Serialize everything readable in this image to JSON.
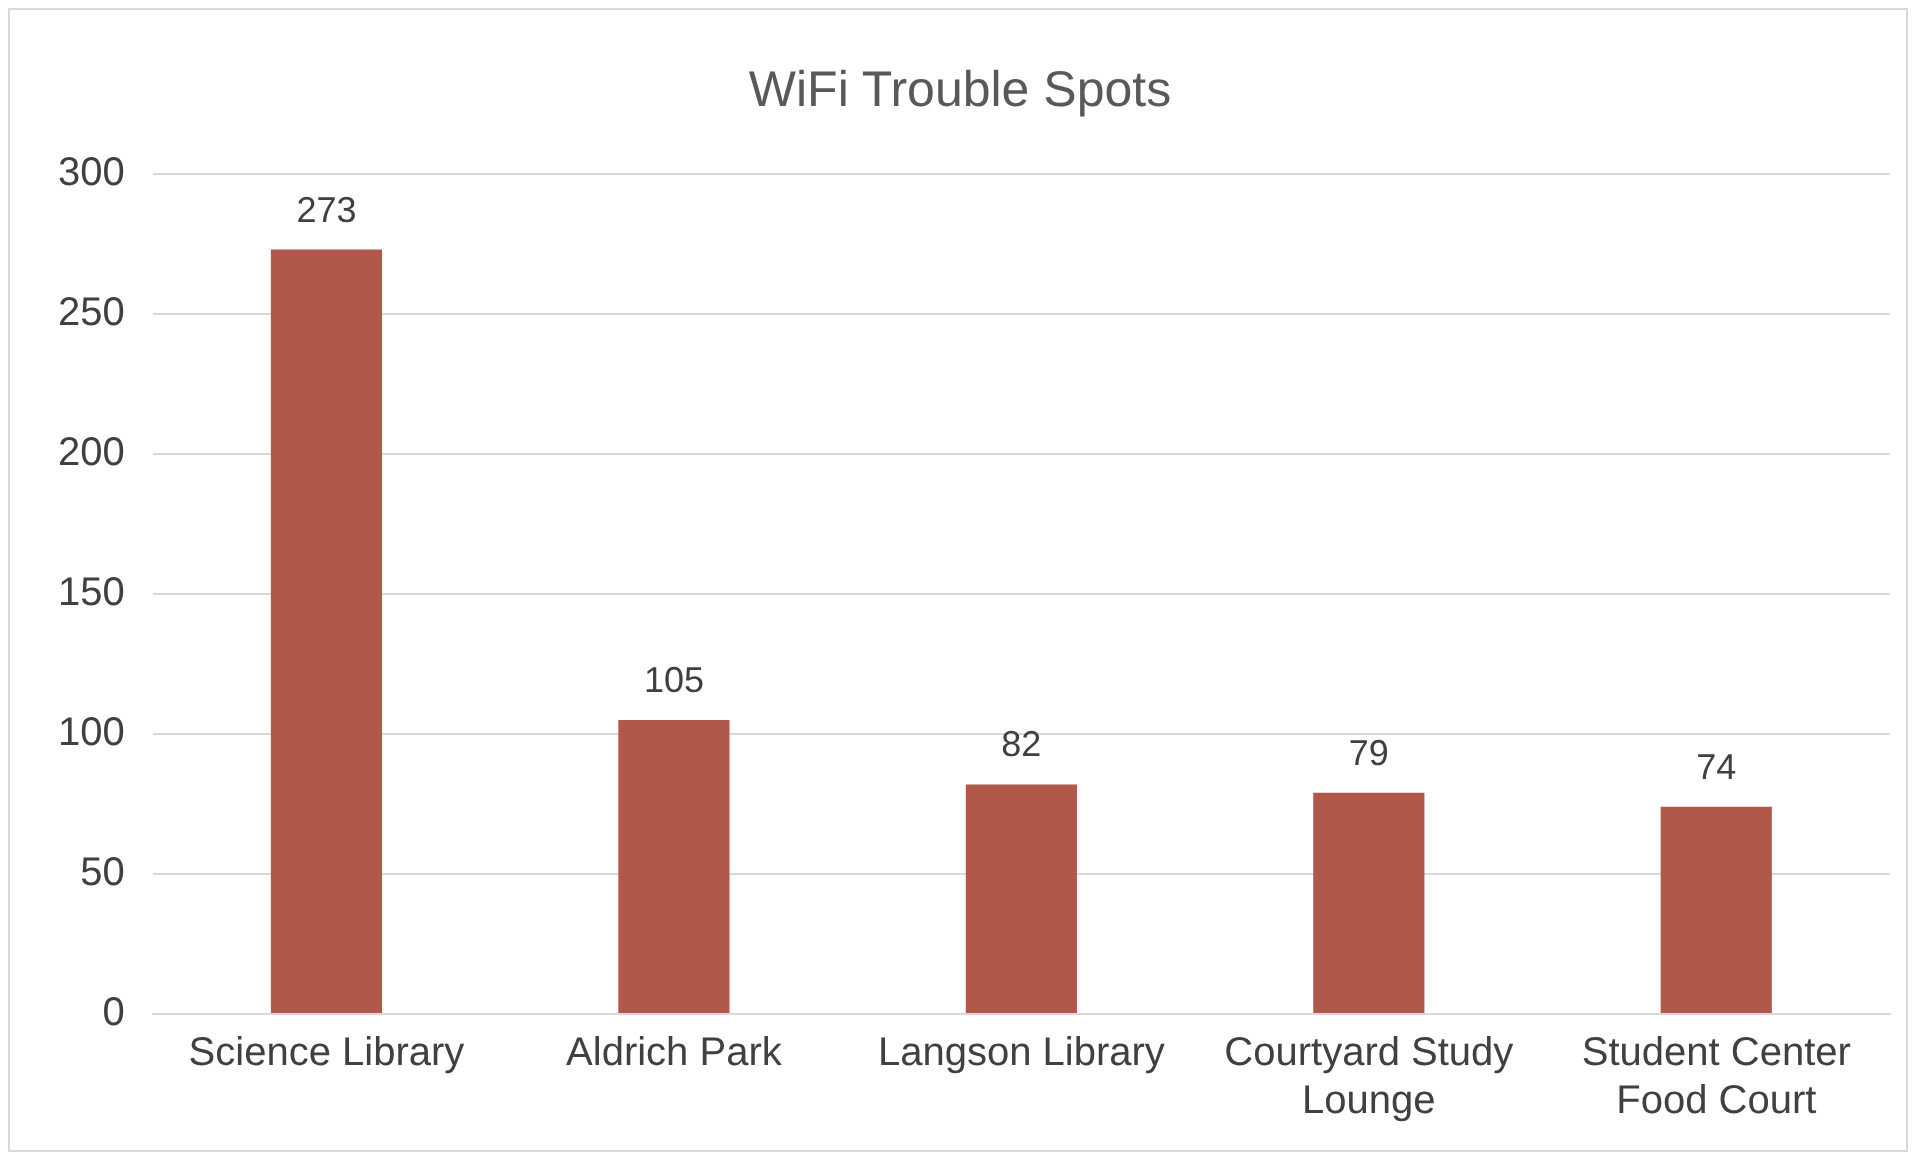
{
  "chart_data": {
    "type": "bar",
    "title": "WiFi Trouble Spots",
    "categories": [
      "Science Library",
      "Aldrich Park",
      "Langson Library",
      "Courtyard Study Lounge",
      "Student Center Food Court"
    ],
    "values": [
      273,
      105,
      82,
      79,
      74
    ],
    "color": "#b0584a",
    "ylim": [
      0,
      300
    ],
    "yticks": [
      0,
      50,
      100,
      150,
      200,
      250,
      300
    ],
    "grid": "y",
    "data_labels": true,
    "legend": false
  }
}
